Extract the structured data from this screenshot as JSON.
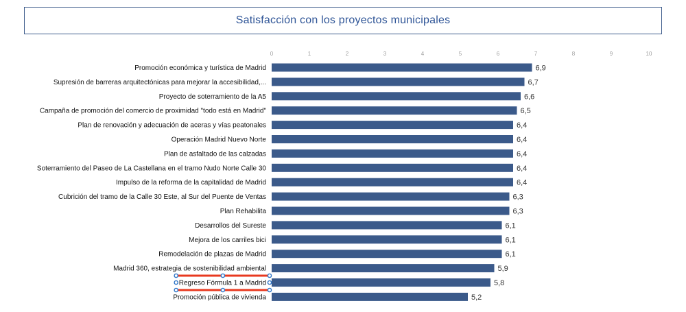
{
  "chart_data": {
    "type": "bar",
    "orientation": "horizontal",
    "title": "Satisfacción con los proyectos municipales",
    "xlim": [
      0,
      10
    ],
    "ticks": [
      0,
      1,
      2,
      3,
      4,
      5,
      6,
      7,
      8,
      9,
      10
    ],
    "grid": false,
    "bar_color": "#3b5a8a",
    "selection_color": "#e8391f",
    "selection_handle_color": "#2e75c8",
    "selected_category": "Regreso Fórmula 1 a Madrid",
    "categories": [
      "Promoción económica y turística de Madrid",
      "Supresión de barreras arquitectónicas para mejorar la accesibilidad,...",
      "Proyecto de soterramiento de la A5",
      "Campaña de promoción del comercio de proximidad \"todo está en Madrid\"",
      "Plan de renovación y adecuación de aceras y vías peatonales",
      "Operación Madrid Nuevo Norte",
      "Plan de asfaltado de las calzadas",
      "Soterramiento del Paseo de La Castellana en el tramo Nudo Norte Calle 30",
      "Impulso de la reforma de la capitalidad de Madrid",
      "Cubrición del tramo de la Calle 30 Este, al Sur del Puente de Ventas",
      "Plan Rehabilita",
      "Desarrollos del Sureste",
      "Mejora de los carriles bici",
      "Remodelación de plazas de Madrid",
      "Madrid 360, estrategia de sostenibilidad ambiental",
      "Regreso Fórmula 1 a Madrid",
      "Promoción pública de vivienda"
    ],
    "values": [
      6.9,
      6.7,
      6.6,
      6.5,
      6.4,
      6.4,
      6.4,
      6.4,
      6.4,
      6.3,
      6.3,
      6.1,
      6.1,
      6.1,
      5.9,
      5.8,
      5.2
    ],
    "value_labels": [
      "6,9",
      "6,7",
      "6,6",
      "6,5",
      "6,4",
      "6,4",
      "6,4",
      "6,4",
      "6,4",
      "6,3",
      "6,3",
      "6,1",
      "6,1",
      "6,1",
      "5,9",
      "5,8",
      "5,2"
    ]
  }
}
